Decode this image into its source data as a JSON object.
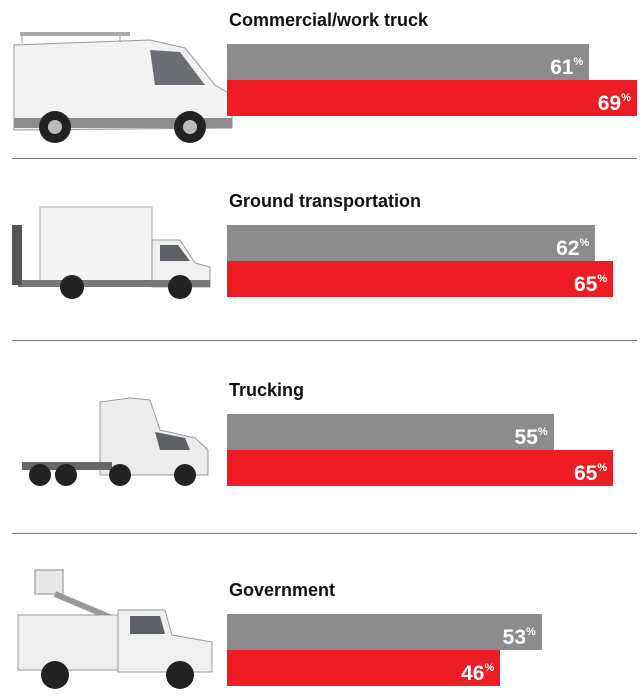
{
  "chart_data": {
    "type": "bar",
    "categories": [
      "Commercial/work truck",
      "Ground transportation",
      "Trucking",
      "Government"
    ],
    "series": [
      {
        "color": "#8c8c8c",
        "values": [
          61,
          62,
          55,
          53
        ],
        "value_labels": [
          "61%",
          "62%",
          "55%",
          "53%"
        ]
      },
      {
        "color": "#ee1c25",
        "values": [
          69,
          65,
          65,
          46
        ],
        "value_labels": [
          "69%",
          "65%",
          "65%",
          "46%"
        ]
      }
    ]
  }
}
